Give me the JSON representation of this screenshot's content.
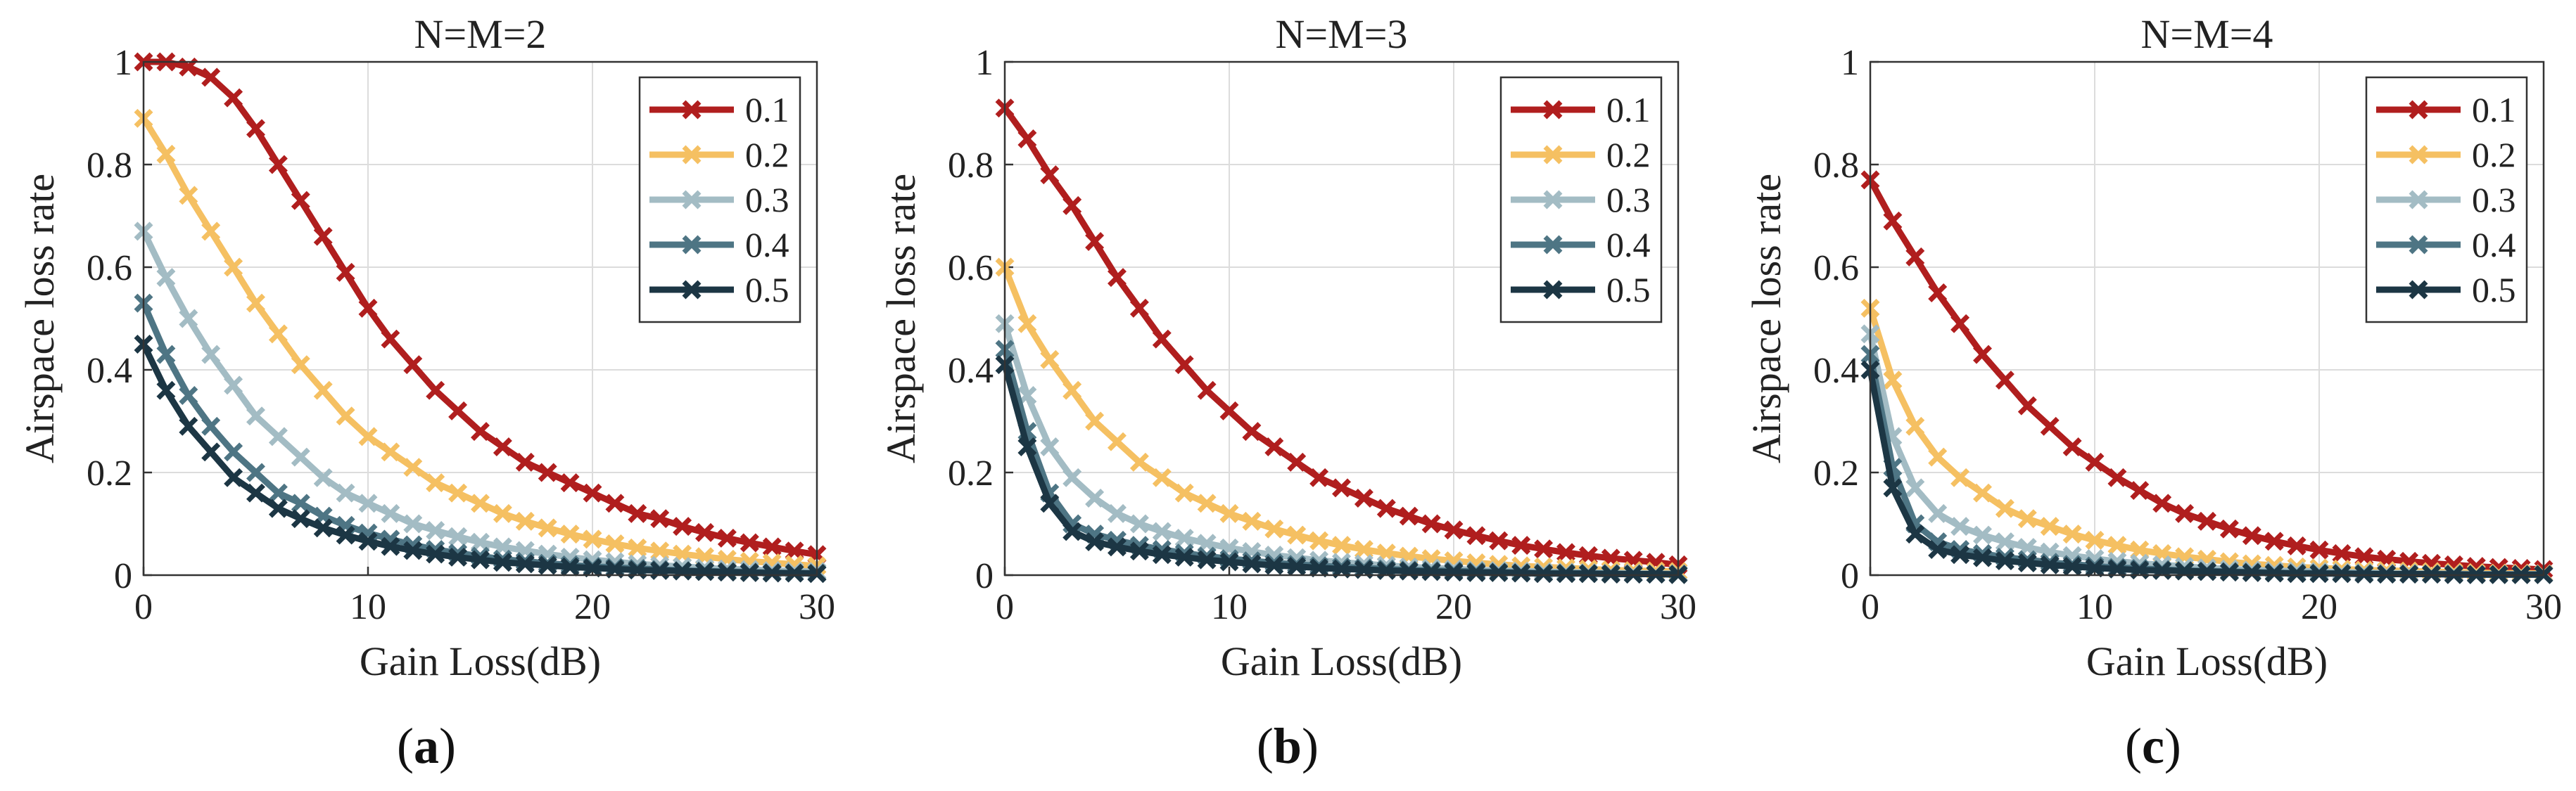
{
  "colors": {
    "0.1": "#b01e1e",
    "0.2": "#f5c062",
    "0.3": "#a3bcc4",
    "0.4": "#4e7584",
    "0.5": "#1c3644"
  },
  "chart_data": [
    {
      "type": "line",
      "panel": "(a)",
      "title": "N=M=2",
      "xlabel": "Gain Loss(dB)",
      "ylabel": "Airspace loss rate",
      "xlim": [
        0,
        30
      ],
      "ylim": [
        0,
        1
      ],
      "xticks": [
        "0",
        "10",
        "20",
        "30"
      ],
      "yticks": [
        "0",
        "0.2",
        "0.4",
        "0.6",
        "0.8",
        "1"
      ],
      "grid": true,
      "legend": "top-right",
      "marker": "x",
      "x": [
        0,
        1,
        2,
        3,
        4,
        5,
        6,
        7,
        8,
        9,
        10,
        11,
        12,
        13,
        14,
        15,
        16,
        17,
        18,
        19,
        20,
        21,
        22,
        23,
        24,
        25,
        26,
        27,
        28,
        29,
        30
      ],
      "series": [
        {
          "name": "0.1",
          "values": [
            1.0,
            1.0,
            0.99,
            0.97,
            0.93,
            0.87,
            0.8,
            0.73,
            0.66,
            0.59,
            0.52,
            0.46,
            0.41,
            0.36,
            0.32,
            0.28,
            0.25,
            0.22,
            0.2,
            0.18,
            0.16,
            0.14,
            0.12,
            0.11,
            0.095,
            0.083,
            0.072,
            0.063,
            0.055,
            0.047,
            0.04
          ]
        },
        {
          "name": "0.2",
          "values": [
            0.89,
            0.82,
            0.74,
            0.67,
            0.6,
            0.53,
            0.47,
            0.41,
            0.36,
            0.31,
            0.27,
            0.24,
            0.21,
            0.18,
            0.16,
            0.14,
            0.12,
            0.105,
            0.092,
            0.08,
            0.07,
            0.061,
            0.053,
            0.047,
            0.041,
            0.036,
            0.031,
            0.027,
            0.024,
            0.021,
            0.018
          ]
        },
        {
          "name": "0.3",
          "values": [
            0.67,
            0.58,
            0.5,
            0.43,
            0.37,
            0.31,
            0.27,
            0.23,
            0.19,
            0.16,
            0.14,
            0.12,
            0.1,
            0.087,
            0.075,
            0.064,
            0.055,
            0.048,
            0.041,
            0.035,
            0.03,
            0.026,
            0.022,
            0.019,
            0.017,
            0.014,
            0.012,
            0.011,
            0.009,
            0.008,
            0.007
          ]
        },
        {
          "name": "0.4",
          "values": [
            0.53,
            0.43,
            0.35,
            0.29,
            0.24,
            0.2,
            0.16,
            0.14,
            0.115,
            0.097,
            0.082,
            0.07,
            0.059,
            0.05,
            0.043,
            0.037,
            0.031,
            0.027,
            0.023,
            0.02,
            0.017,
            0.015,
            0.013,
            0.011,
            0.009,
            0.008,
            0.007,
            0.006,
            0.005,
            0.004,
            0.004
          ]
        },
        {
          "name": "0.5",
          "values": [
            0.45,
            0.36,
            0.29,
            0.24,
            0.19,
            0.16,
            0.13,
            0.11,
            0.092,
            0.078,
            0.066,
            0.056,
            0.048,
            0.041,
            0.035,
            0.03,
            0.025,
            0.022,
            0.019,
            0.016,
            0.014,
            0.012,
            0.01,
            0.009,
            0.008,
            0.007,
            0.006,
            0.005,
            0.004,
            0.004,
            0.003
          ]
        }
      ]
    },
    {
      "type": "line",
      "panel": "(b)",
      "title": "N=M=3",
      "xlabel": "Gain Loss(dB)",
      "ylabel": "Airspace loss rate",
      "xlim": [
        0,
        30
      ],
      "ylim": [
        0,
        1
      ],
      "xticks": [
        "0",
        "10",
        "20",
        "30"
      ],
      "yticks": [
        "0",
        "0.2",
        "0.4",
        "0.6",
        "0.8",
        "1"
      ],
      "grid": true,
      "legend": "top-right",
      "marker": "x",
      "x": [
        0,
        1,
        2,
        3,
        4,
        5,
        6,
        7,
        8,
        9,
        10,
        11,
        12,
        13,
        14,
        15,
        16,
        17,
        18,
        19,
        20,
        21,
        22,
        23,
        24,
        25,
        26,
        27,
        28,
        29,
        30
      ],
      "series": [
        {
          "name": "0.1",
          "values": [
            0.91,
            0.85,
            0.78,
            0.72,
            0.65,
            0.58,
            0.52,
            0.46,
            0.41,
            0.36,
            0.32,
            0.28,
            0.25,
            0.22,
            0.19,
            0.17,
            0.15,
            0.13,
            0.115,
            0.1,
            0.088,
            0.077,
            0.067,
            0.058,
            0.051,
            0.044,
            0.038,
            0.033,
            0.029,
            0.025,
            0.02
          ]
        },
        {
          "name": "0.2",
          "values": [
            0.6,
            0.49,
            0.42,
            0.36,
            0.3,
            0.26,
            0.22,
            0.19,
            0.16,
            0.14,
            0.12,
            0.105,
            0.09,
            0.078,
            0.067,
            0.058,
            0.05,
            0.043,
            0.037,
            0.032,
            0.028,
            0.024,
            0.021,
            0.018,
            0.016,
            0.014,
            0.012,
            0.01,
            0.009,
            0.008,
            0.007
          ]
        },
        {
          "name": "0.3",
          "values": [
            0.49,
            0.35,
            0.25,
            0.19,
            0.15,
            0.12,
            0.1,
            0.085,
            0.072,
            0.062,
            0.053,
            0.046,
            0.039,
            0.034,
            0.029,
            0.025,
            0.022,
            0.019,
            0.016,
            0.014,
            0.012,
            0.01,
            0.009,
            0.008,
            0.007,
            0.006,
            0.005,
            0.004,
            0.004,
            0.003,
            0.003
          ]
        },
        {
          "name": "0.4",
          "values": [
            0.44,
            0.28,
            0.16,
            0.1,
            0.08,
            0.068,
            0.058,
            0.05,
            0.043,
            0.037,
            0.032,
            0.028,
            0.024,
            0.021,
            0.018,
            0.016,
            0.014,
            0.012,
            0.01,
            0.009,
            0.008,
            0.007,
            0.006,
            0.005,
            0.004,
            0.004,
            0.003,
            0.003,
            0.002,
            0.002,
            0.002
          ]
        },
        {
          "name": "0.5",
          "values": [
            0.41,
            0.25,
            0.14,
            0.085,
            0.065,
            0.055,
            0.047,
            0.04,
            0.035,
            0.03,
            0.026,
            0.022,
            0.019,
            0.017,
            0.014,
            0.012,
            0.011,
            0.009,
            0.008,
            0.007,
            0.006,
            0.005,
            0.005,
            0.004,
            0.003,
            0.003,
            0.003,
            0.002,
            0.002,
            0.002,
            0.001
          ]
        }
      ]
    },
    {
      "type": "line",
      "panel": "(c)",
      "title": "N=M=4",
      "xlabel": "Gain Loss(dB)",
      "ylabel": "Airspace loss rate",
      "xlim": [
        0,
        30
      ],
      "ylim": [
        0,
        1
      ],
      "xticks": [
        "0",
        "10",
        "20",
        "30"
      ],
      "yticks": [
        "0",
        "0.2",
        "0.4",
        "0.6",
        "0.8",
        "1"
      ],
      "grid": true,
      "legend": "top-right",
      "marker": "x",
      "x": [
        0,
        1,
        2,
        3,
        4,
        5,
        6,
        7,
        8,
        9,
        10,
        11,
        12,
        13,
        14,
        15,
        16,
        17,
        18,
        19,
        20,
        21,
        22,
        23,
        24,
        25,
        26,
        27,
        28,
        29,
        30
      ],
      "series": [
        {
          "name": "0.1",
          "values": [
            0.77,
            0.69,
            0.62,
            0.55,
            0.49,
            0.43,
            0.38,
            0.33,
            0.29,
            0.25,
            0.22,
            0.19,
            0.165,
            0.14,
            0.12,
            0.105,
            0.09,
            0.077,
            0.066,
            0.057,
            0.049,
            0.042,
            0.036,
            0.031,
            0.027,
            0.023,
            0.02,
            0.017,
            0.015,
            0.013,
            0.011
          ]
        },
        {
          "name": "0.2",
          "values": [
            0.52,
            0.38,
            0.29,
            0.23,
            0.19,
            0.16,
            0.13,
            0.11,
            0.095,
            0.08,
            0.068,
            0.058,
            0.049,
            0.042,
            0.036,
            0.031,
            0.026,
            0.022,
            0.019,
            0.016,
            0.014,
            0.012,
            0.01,
            0.009,
            0.008,
            0.007,
            0.006,
            0.005,
            0.004,
            0.004,
            0.003
          ]
        },
        {
          "name": "0.3",
          "values": [
            0.47,
            0.27,
            0.17,
            0.12,
            0.095,
            0.078,
            0.065,
            0.054,
            0.045,
            0.038,
            0.032,
            0.027,
            0.023,
            0.02,
            0.017,
            0.014,
            0.012,
            0.01,
            0.009,
            0.008,
            0.007,
            0.006,
            0.005,
            0.004,
            0.004,
            0.003,
            0.003,
            0.002,
            0.002,
            0.002,
            0.002
          ]
        },
        {
          "name": "0.4",
          "values": [
            0.43,
            0.21,
            0.1,
            0.065,
            0.05,
            0.042,
            0.035,
            0.03,
            0.025,
            0.021,
            0.018,
            0.015,
            0.013,
            0.011,
            0.009,
            0.008,
            0.007,
            0.006,
            0.005,
            0.004,
            0.004,
            0.003,
            0.003,
            0.002,
            0.002,
            0.002,
            0.002,
            0.001,
            0.001,
            0.001,
            0.001
          ]
        },
        {
          "name": "0.5",
          "values": [
            0.4,
            0.17,
            0.08,
            0.05,
            0.04,
            0.034,
            0.028,
            0.024,
            0.02,
            0.017,
            0.014,
            0.012,
            0.01,
            0.009,
            0.008,
            0.007,
            0.006,
            0.005,
            0.004,
            0.003,
            0.003,
            0.003,
            0.002,
            0.002,
            0.002,
            0.002,
            0.001,
            0.001,
            0.001,
            0.001,
            0.001
          ]
        }
      ]
    }
  ]
}
